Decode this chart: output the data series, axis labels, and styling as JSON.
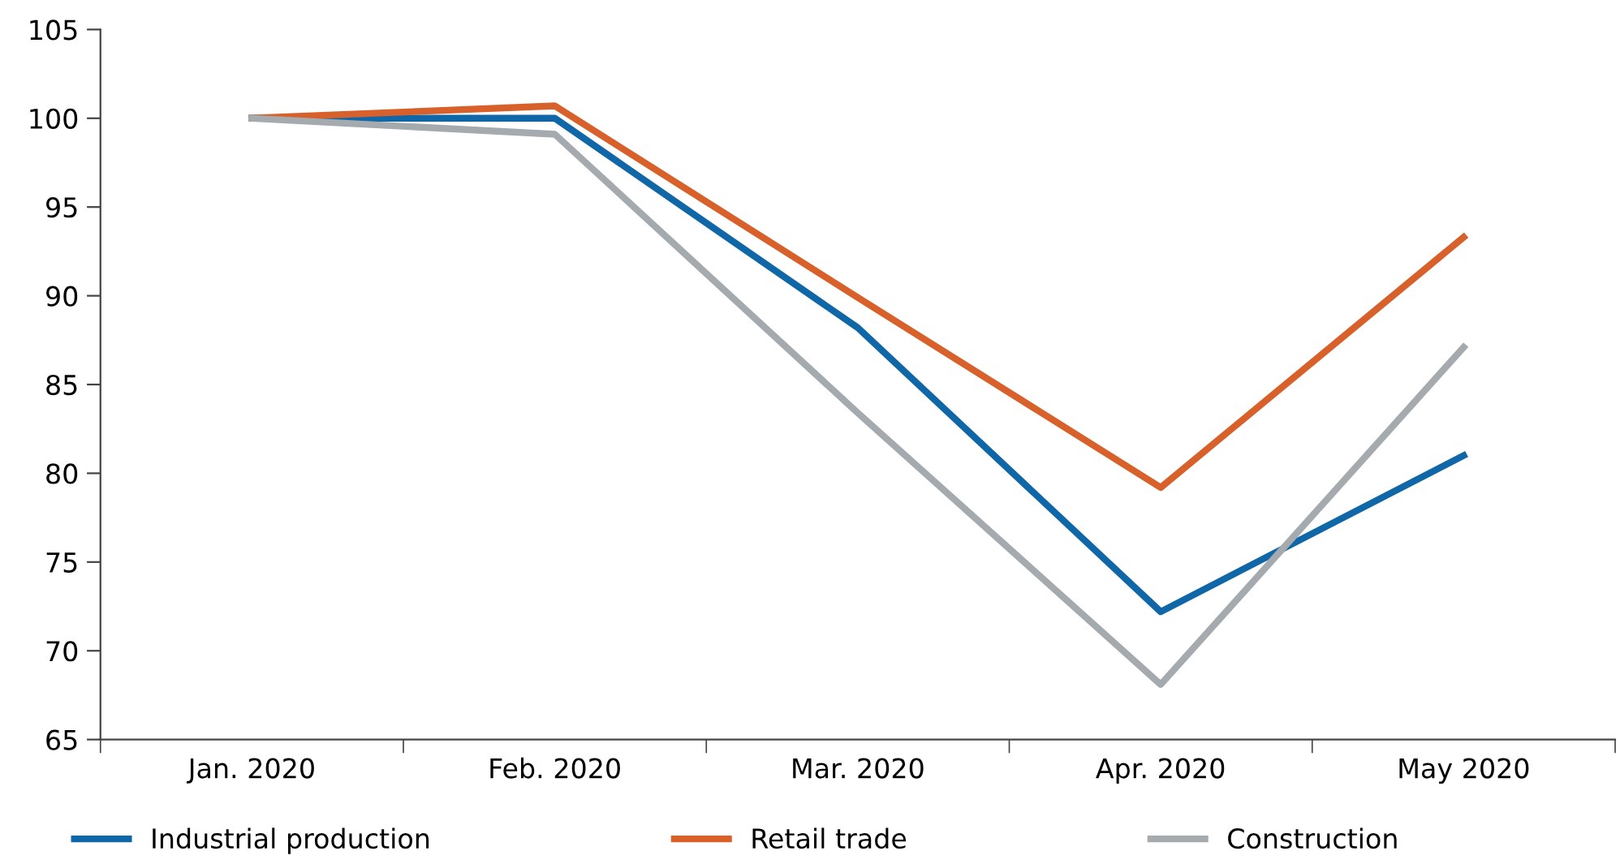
{
  "chart_data": {
    "type": "line",
    "categories": [
      "Jan. 2020",
      "Feb. 2020",
      "Mar. 2020",
      "Apr. 2020",
      "May 2020"
    ],
    "series": [
      {
        "name": "Industrial production",
        "color": "#0f67a8",
        "values": [
          100,
          100,
          88.2,
          72.2,
          81.0
        ]
      },
      {
        "name": "Retail trade",
        "color": "#d8612b",
        "values": [
          100,
          100.7,
          89.9,
          79.2,
          93.3
        ]
      },
      {
        "name": "Construction",
        "color": "#a4aaae",
        "values": [
          100,
          99.1,
          83.4,
          68.1,
          87.1
        ]
      }
    ],
    "ylim": [
      65,
      105
    ],
    "yticks": [
      65,
      70,
      75,
      80,
      85,
      90,
      95,
      100,
      105
    ],
    "grid": false,
    "legend": "bottom",
    "marker": "none",
    "line_style": "solid"
  }
}
